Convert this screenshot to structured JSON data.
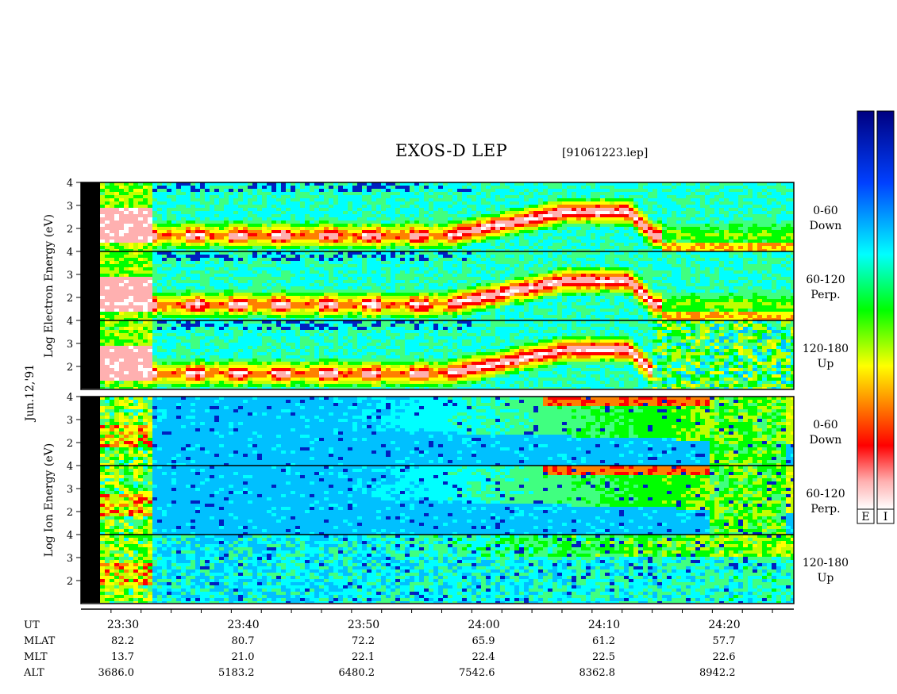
{
  "header": {
    "title": "EXOS-D LEP",
    "file": "[91061223.lep]"
  },
  "chart_data": {
    "type": "heatmap",
    "date_label": "Jun.12,'91",
    "electron_panel": {
      "ylabel_words": [
        "Log",
        "Electron",
        "Energy",
        "(eV)"
      ],
      "subpanels": [
        {
          "ylim": [
            1,
            4
          ],
          "yticks": [
            "4",
            "3",
            "2"
          ],
          "pitch_range": "0-60",
          "direction": "Down"
        },
        {
          "ylim": [
            1,
            4
          ],
          "yticks": [
            "4",
            "3",
            "2"
          ],
          "pitch_range": "60-120",
          "direction": "Perp."
        },
        {
          "ylim": [
            1,
            4
          ],
          "yticks": [
            "4",
            "3",
            "2"
          ],
          "pitch_range": "120-180",
          "direction": "Up"
        }
      ]
    },
    "ion_panel": {
      "ylabel_words": [
        "Log",
        "Ion",
        "Energy",
        "(eV)"
      ],
      "subpanels": [
        {
          "ylim": [
            1,
            4
          ],
          "yticks": [
            "4",
            "3",
            "2"
          ],
          "pitch_range": "0-60",
          "direction": "Down"
        },
        {
          "ylim": [
            1,
            4
          ],
          "yticks": [
            "4",
            "3",
            "2"
          ],
          "pitch_range": "60-120",
          "direction": "Perp."
        },
        {
          "ylim": [
            1,
            4
          ],
          "yticks": [
            "4",
            "3",
            "2"
          ],
          "pitch_range": "120-180",
          "direction": "Up"
        }
      ]
    },
    "time_axis": {
      "row_labels": [
        "UT",
        "MLAT",
        "MLT",
        "ALT"
      ],
      "ticks": [
        {
          "UT": "23:30",
          "MLAT": "82.2",
          "MLT": "13.7",
          "ALT": "3686.0"
        },
        {
          "UT": "23:40",
          "MLAT": "80.7",
          "MLT": "21.0",
          "ALT": "5183.2"
        },
        {
          "UT": "23:50",
          "MLAT": "72.2",
          "MLT": "22.1",
          "ALT": "6480.2"
        },
        {
          "UT": "24:00",
          "MLAT": "65.9",
          "MLT": "22.4",
          "ALT": "7542.6"
        },
        {
          "UT": "24:10",
          "MLAT": "61.2",
          "MLT": "22.5",
          "ALT": "8362.8"
        },
        {
          "UT": "24:20",
          "MLAT": "57.7",
          "MLT": "22.6",
          "ALT": "8942.2"
        }
      ]
    },
    "colorbars": [
      {
        "label": "E"
      },
      {
        "label": "I"
      }
    ],
    "colorscale": [
      "#ffffff",
      "#ffd0d0",
      "#ff0000",
      "#ff8000",
      "#ffff00",
      "#00ff00",
      "#00ffff",
      "#0060ff",
      "#000080"
    ]
  }
}
